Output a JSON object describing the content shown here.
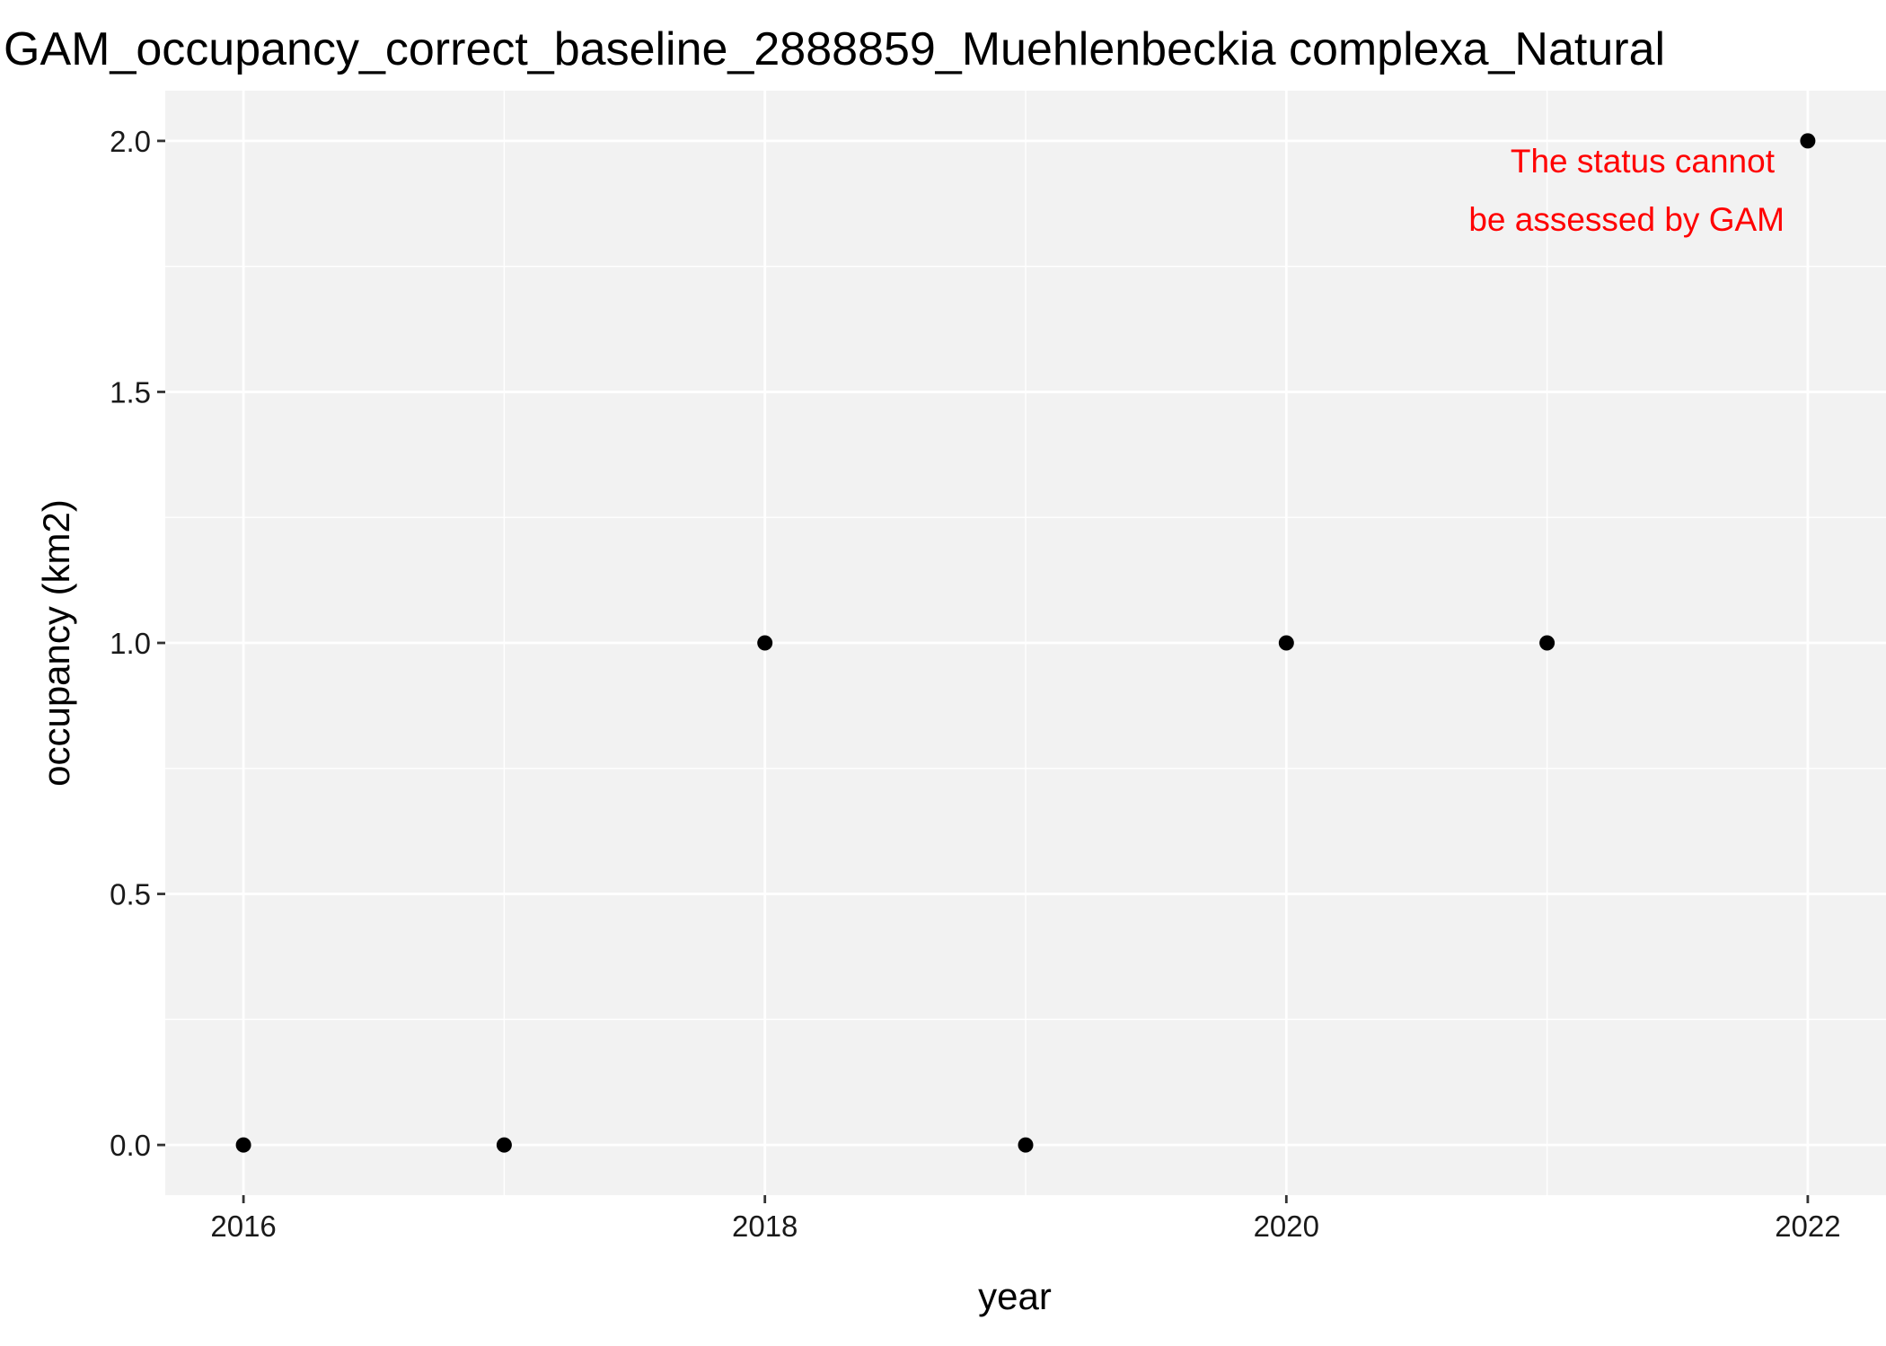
{
  "chart_data": {
    "type": "scatter",
    "title": "GAM_occupancy_correct_baseline_2888859_Muehlenbeckia complexa_Natural",
    "xlabel": "year",
    "ylabel": "occupancy (km2)",
    "x_ticks": [
      2016,
      2018,
      2020,
      2022
    ],
    "y_ticks": [
      "0.0",
      "0.5",
      "1.0",
      "1.5",
      "2.0"
    ],
    "xlim": [
      2015.7,
      2022.3
    ],
    "ylim": [
      -0.1,
      2.1
    ],
    "grid": true,
    "series": [
      {
        "points": [
          {
            "x": 2016,
            "y": 0
          },
          {
            "x": 2017,
            "y": 0
          },
          {
            "x": 2018,
            "y": 1
          },
          {
            "x": 2019,
            "y": 0
          },
          {
            "x": 2020,
            "y": 1
          },
          {
            "x": 2021,
            "y": 1
          },
          {
            "x": 2022,
            "y": 2
          }
        ]
      }
    ],
    "annotation": {
      "lines": [
        "The status cannot",
        "be assessed by GAM"
      ],
      "color": "#ff0000"
    }
  },
  "colors": {
    "panel_background": "#f2f2f2",
    "grid": "#ffffff",
    "point": "#000000",
    "annotation": "#ff0000"
  }
}
